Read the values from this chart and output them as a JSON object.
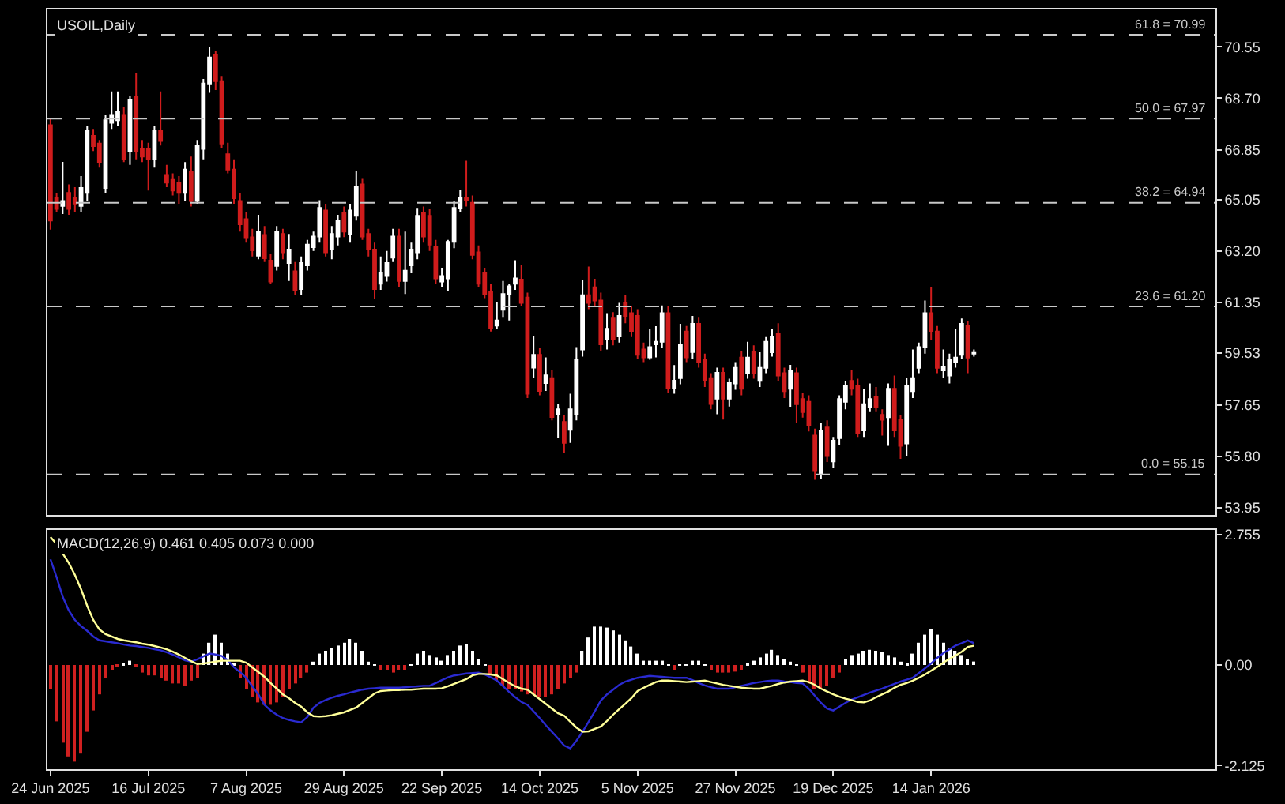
{
  "chart_data": [
    {
      "type": "candlestick",
      "title": "USOIL,Daily",
      "categories": [
        null,
        null,
        null,
        null,
        null,
        null,
        null,
        null,
        null,
        null,
        null,
        null,
        null,
        null,
        null,
        null,
        null,
        null,
        null,
        null,
        null,
        null,
        null,
        null,
        null,
        null,
        null,
        null,
        null,
        null,
        null,
        null,
        null,
        null,
        null,
        null,
        null,
        null,
        null,
        null,
        null,
        null,
        null,
        null,
        null,
        null,
        null,
        null,
        null,
        null,
        null,
        null,
        null,
        null,
        null,
        null,
        null,
        null,
        null,
        null,
        null,
        null,
        null,
        null,
        null,
        null,
        null,
        null,
        null,
        null,
        null,
        null,
        null,
        null,
        null,
        null,
        null,
        null,
        null,
        null,
        null,
        null,
        null,
        null,
        null,
        null,
        null,
        null,
        null,
        null,
        null,
        null,
        null,
        null,
        null,
        null,
        null,
        null,
        null,
        null,
        null,
        null,
        null,
        null,
        null,
        null,
        null,
        null,
        null,
        null,
        null,
        null,
        null,
        null,
        null,
        null,
        null,
        null,
        null,
        null,
        null,
        null,
        null,
        null,
        null,
        null,
        null,
        null,
        null,
        null,
        null,
        null,
        null,
        null,
        null,
        null,
        null,
        null,
        null,
        null,
        null,
        null,
        null,
        null,
        null,
        null,
        null,
        null,
        null,
        null,
        null,
        null,
        null,
        null,
        null,
        null,
        null,
        null,
        null,
        null,
        null,
        null,
        null,
        null,
        null,
        null,
        null,
        null,
        null,
        null,
        null,
        null,
        null,
        null,
        null,
        null,
        null,
        null,
        null,
        null,
        null,
        null,
        null,
        null,
        null,
        null,
        null,
        null,
        null,
        null,
        null
      ],
      "colors": [
        "#d01c1c",
        "#d01c1c",
        "#ffffff",
        "#d01c1c",
        "#d01c1c",
        "#ffffff",
        "#ffffff",
        "#d01c1c",
        "#d01c1c",
        "#ffffff",
        "#ffffff",
        "#ffffff",
        "#d01c1c",
        "#ffffff",
        "#d01c1c",
        "#d01c1c",
        "#d01c1c",
        "#ffffff",
        "#d01c1c",
        "#d01c1c",
        "#d01c1c",
        "#d01c1c",
        "#ffffff",
        "#d01c1c",
        "#ffffff",
        "#ffffff",
        "#ffffff",
        "#d01c1c",
        "#d01c1c",
        "#d01c1c",
        "#d01c1c",
        "#d01c1c",
        "#d01c1c",
        "#d01c1c",
        "#ffffff",
        "#d01c1c",
        "#d01c1c",
        "#ffffff",
        "#d01c1c",
        "#ffffff",
        "#d01c1c",
        "#ffffff",
        "#ffffff",
        "#ffffff",
        "#ffffff",
        "#d01c1c",
        "#ffffff",
        "#ffffff",
        "#d01c1c",
        "#ffffff",
        "#ffffff",
        "#d01c1c",
        "#d01c1c",
        "#d01c1c",
        "#ffffff",
        "#ffffff",
        "#ffffff",
        "#d01c1c",
        "#ffffff",
        "#ffffff",
        "#ffffff",
        "#d01c1c",
        "#d01c1c",
        "#d01c1c",
        "#ffffff",
        "#ffffff",
        "#ffffff",
        "#ffffff",
        "#d01c1c",
        "#d01c1c",
        "#d01c1c",
        "#d01c1c",
        "#d01c1c",
        "#ffffff",
        "#ffffff",
        "#ffffff",
        "#ffffff",
        "#d01c1c",
        "#d01c1c",
        "#ffffff",
        "#d01c1c",
        "#ffffff",
        "#d01c1c",
        "#ffffff",
        "#d01c1c",
        "#ffffff",
        "#ffffff",
        "#ffffff",
        "#d01c1c",
        "#d01c1c",
        "#d01c1c",
        "#ffffff",
        "#d01c1c",
        "#ffffff",
        "#d01c1c",
        "#d01c1c",
        "#d01c1c",
        "#d01c1c",
        "#ffffff",
        "#ffffff",
        "#ffffff",
        "#d01c1c",
        "#ffffff",
        "#ffffff",
        "#d01c1c",
        "#ffffff",
        "#d01c1c",
        "#d01c1c",
        "#d01c1c",
        "#ffffff",
        "#d01c1c",
        "#ffffff",
        "#ffffff",
        "#d01c1c",
        "#ffffff",
        "#d01c1c",
        "#ffffff",
        "#ffffff",
        "#ffffff",
        "#d01c1c",
        "#d01c1c",
        "#ffffff",
        "#d01c1c",
        "#d01c1c",
        "#d01c1c",
        "#d01c1c",
        "#ffffff",
        "#d01c1c",
        "#ffffff",
        "#ffffff",
        "#ffffff",
        "#d01c1c",
        "#d01c1c",
        "#ffffff",
        "#ffffff",
        "#d01c1c",
        "#d01c1c",
        "#ffffff",
        "#d01c1c",
        "#d01c1c",
        "#ffffff",
        "#ffffff",
        "#ffffff",
        "#ffffff",
        "#d01c1c",
        "#d01c1c",
        "#ffffff",
        "#ffffff",
        "#ffffff",
        "#ffffff",
        "#d01c1c",
        "#ffffff",
        null,
        null,
        null,
        null,
        null,
        null,
        null,
        null,
        null,
        null,
        null,
        null,
        null,
        null,
        null,
        null,
        null,
        null,
        null,
        null,
        null,
        null,
        null,
        null,
        null,
        null,
        null,
        null,
        null,
        null,
        null,
        null,
        null,
        null,
        null,
        null,
        null,
        null,
        null
      ],
      "ohlc": [
        [
          67.73,
          67.95,
          63.97,
          64.3
        ],
        [
          65.1,
          65.3,
          64.6,
          64.72
        ],
        [
          64.82,
          66.41,
          64.53,
          65.0
        ],
        [
          65.29,
          65.6,
          64.5,
          64.72
        ],
        [
          65.1,
          65.5,
          64.6,
          64.91
        ],
        [
          64.82,
          65.9,
          64.6,
          65.47
        ],
        [
          65.29,
          67.7,
          65.0,
          67.54
        ],
        [
          67.35,
          67.6,
          66.8,
          66.98
        ],
        [
          67.07,
          67.2,
          66.2,
          66.41
        ],
        [
          65.47,
          68.1,
          65.3,
          67.91
        ],
        [
          67.82,
          68.95,
          67.6,
          68.1
        ],
        [
          67.91,
          68.95,
          67.7,
          68.2
        ],
        [
          68.1,
          68.4,
          66.4,
          66.51
        ],
        [
          66.79,
          68.8,
          66.3,
          68.66
        ],
        [
          68.76,
          69.6,
          66.5,
          66.79
        ],
        [
          66.88,
          67.2,
          66.4,
          66.6
        ],
        [
          66.88,
          67.1,
          65.38,
          66.51
        ],
        [
          66.51,
          67.7,
          66.2,
          67.54
        ],
        [
          67.54,
          68.95,
          67.0,
          67.16
        ],
        [
          65.94,
          66.3,
          65.5,
          65.66
        ],
        [
          65.76,
          66.0,
          65.2,
          65.38
        ],
        [
          65.66,
          65.9,
          64.9,
          65.29
        ],
        [
          65.29,
          66.4,
          65.0,
          66.13
        ],
        [
          66.04,
          66.6,
          64.8,
          65.0
        ],
        [
          65.0,
          67.2,
          64.9,
          66.98
        ],
        [
          66.88,
          69.4,
          66.5,
          69.23
        ],
        [
          69.23,
          70.54,
          68.9,
          70.17
        ],
        [
          70.26,
          70.4,
          69.0,
          69.32
        ],
        [
          69.32,
          69.5,
          66.9,
          67.07
        ],
        [
          66.69,
          67.1,
          66.0,
          66.13
        ],
        [
          66.13,
          66.5,
          64.9,
          65.1
        ],
        [
          65.0,
          65.3,
          63.9,
          64.16
        ],
        [
          64.35,
          64.6,
          63.5,
          63.69
        ],
        [
          63.69,
          64.0,
          63.0,
          63.22
        ],
        [
          63.03,
          64.5,
          62.9,
          63.88
        ],
        [
          63.78,
          64.1,
          62.8,
          62.94
        ],
        [
          62.85,
          63.1,
          62.0,
          62.1
        ],
        [
          62.66,
          64.1,
          62.5,
          63.88
        ],
        [
          63.81,
          64.0,
          62.9,
          63.15
        ],
        [
          62.77,
          63.81,
          62.12,
          63.25
        ],
        [
          62.47,
          62.8,
          61.6,
          61.8
        ],
        [
          61.83,
          63.0,
          61.6,
          62.77
        ],
        [
          62.68,
          63.6,
          62.5,
          63.43
        ],
        [
          63.34,
          63.9,
          63.2,
          63.72
        ],
        [
          63.72,
          65.03,
          63.5,
          64.75
        ],
        [
          64.66,
          64.9,
          63.0,
          63.15
        ],
        [
          63.25,
          64.1,
          62.9,
          63.81
        ],
        [
          63.72,
          64.5,
          63.4,
          64.28
        ],
        [
          64.56,
          64.8,
          63.7,
          63.9
        ],
        [
          63.81,
          64.9,
          63.5,
          64.66
        ],
        [
          64.47,
          66.07,
          64.3,
          65.5
        ],
        [
          65.6,
          65.8,
          63.6,
          63.72
        ],
        [
          63.81,
          64.0,
          63.0,
          63.25
        ],
        [
          63.25,
          63.5,
          61.46,
          61.83
        ],
        [
          62.02,
          63.0,
          61.8,
          62.4
        ],
        [
          62.3,
          63.2,
          62.1,
          62.77
        ],
        [
          62.96,
          64.0,
          62.8,
          63.72
        ],
        [
          63.72,
          64.0,
          61.9,
          62.12
        ],
        [
          62.12,
          63.9,
          61.65,
          62.49
        ],
        [
          62.68,
          63.5,
          62.4,
          63.25
        ],
        [
          63.15,
          64.75,
          62.9,
          64.47
        ],
        [
          64.56,
          64.8,
          63.5,
          63.72
        ],
        [
          64.47,
          64.7,
          63.2,
          63.43
        ],
        [
          63.34,
          63.6,
          62.0,
          62.21
        ],
        [
          62.1,
          62.6,
          61.9,
          62.3
        ],
        [
          62.21,
          63.6,
          61.74,
          63.53
        ],
        [
          63.53,
          65.0,
          63.3,
          64.75
        ],
        [
          64.75,
          65.41,
          64.6,
          65.13
        ],
        [
          65.13,
          66.45,
          64.8,
          65.03
        ],
        [
          64.94,
          65.2,
          62.9,
          63.06
        ],
        [
          63.15,
          63.4,
          61.9,
          62.02
        ],
        [
          62.4,
          62.6,
          61.5,
          61.65
        ],
        [
          61.74,
          62.0,
          60.3,
          60.42
        ],
        [
          60.51,
          61.36,
          60.4,
          60.7
        ],
        [
          61.08,
          62.12,
          60.8,
          61.65
        ],
        [
          61.65,
          62.02,
          60.7,
          61.93
        ],
        [
          62.02,
          62.87,
          61.8,
          62.21
        ],
        [
          62.17,
          62.7,
          61.2,
          61.33
        ],
        [
          61.52,
          61.7,
          57.9,
          58.06
        ],
        [
          59.0,
          60.12,
          58.62,
          59.46
        ],
        [
          59.46,
          59.7,
          58.0,
          58.16
        ],
        [
          58.44,
          59.37,
          58.16,
          58.72
        ],
        [
          58.62,
          58.9,
          57.1,
          57.22
        ],
        [
          57.32,
          57.69,
          56.48,
          57.5
        ],
        [
          57.04,
          57.3,
          55.92,
          56.29
        ],
        [
          56.76,
          58.06,
          56.29,
          57.5
        ],
        [
          57.32,
          59.74,
          57.1,
          59.28
        ],
        [
          59.65,
          62.17,
          59.4,
          61.61
        ],
        [
          61.61,
          62.64,
          61.1,
          61.33
        ],
        [
          61.89,
          62.2,
          61.2,
          61.42
        ],
        [
          61.42,
          61.7,
          59.6,
          59.84
        ],
        [
          60.02,
          60.96,
          59.65,
          60.4
        ],
        [
          60.77,
          61.0,
          59.8,
          60.02
        ],
        [
          60.12,
          61.33,
          59.9,
          60.86
        ],
        [
          61.33,
          61.6,
          60.6,
          60.86
        ],
        [
          60.96,
          61.2,
          60.1,
          60.3
        ],
        [
          60.86,
          61.1,
          59.3,
          59.46
        ],
        [
          59.65,
          59.9,
          59.2,
          59.37
        ],
        [
          59.37,
          60.4,
          59.28,
          59.74
        ],
        [
          59.84,
          60.49,
          59.37,
          59.93
        ],
        [
          59.93,
          61.24,
          59.7,
          60.96
        ],
        [
          60.96,
          61.2,
          58.1,
          58.25
        ],
        [
          58.25,
          59.09,
          58.06,
          58.53
        ],
        [
          58.62,
          60.58,
          58.4,
          59.84
        ],
        [
          60.3,
          60.5,
          59.2,
          59.37
        ],
        [
          59.56,
          60.86,
          59.3,
          60.58
        ],
        [
          60.58,
          60.8,
          59.0,
          59.18
        ],
        [
          59.28,
          59.5,
          58.3,
          58.53
        ],
        [
          58.62,
          58.8,
          57.5,
          57.69
        ],
        [
          57.88,
          59.0,
          57.32,
          58.81
        ],
        [
          58.81,
          59.0,
          57.13,
          57.88
        ],
        [
          57.88,
          58.6,
          57.6,
          58.44
        ],
        [
          58.43,
          59.2,
          58.2,
          58.99
        ],
        [
          59.36,
          59.6,
          58.0,
          58.24
        ],
        [
          58.8,
          59.93,
          58.6,
          59.36
        ],
        [
          59.55,
          59.8,
          58.6,
          58.8
        ],
        [
          58.52,
          59.55,
          58.3,
          58.99
        ],
        [
          58.99,
          60.1,
          58.8,
          59.93
        ],
        [
          59.55,
          60.39,
          59.4,
          60.11
        ],
        [
          60.21,
          60.6,
          58.5,
          58.71
        ],
        [
          58.8,
          59.0,
          57.9,
          58.15
        ],
        [
          58.24,
          59.1,
          57.59,
          58.9
        ],
        [
          58.8,
          59.0,
          57.02,
          57.68
        ],
        [
          57.87,
          58.1,
          57.2,
          57.4
        ],
        [
          57.77,
          58.0,
          56.7,
          56.93
        ],
        [
          56.55,
          56.8,
          54.96,
          55.3
        ],
        [
          55.15,
          57.0,
          55.0,
          56.74
        ],
        [
          56.84,
          57.1,
          55.6,
          55.81
        ],
        [
          55.62,
          56.5,
          55.4,
          56.37
        ],
        [
          56.46,
          58.0,
          56.2,
          57.87
        ],
        [
          57.77,
          58.5,
          57.5,
          58.33
        ],
        [
          58.52,
          58.9,
          58.0,
          58.24
        ],
        [
          58.33,
          58.6,
          56.5,
          56.65
        ],
        [
          56.74,
          58.24,
          56.5,
          57.68
        ],
        [
          57.59,
          58.43,
          57.4,
          57.87
        ],
        [
          57.96,
          58.3,
          57.4,
          57.59
        ],
        [
          57.3,
          57.5,
          56.55,
          57.12
        ],
        [
          57.21,
          58.43,
          56.18,
          58.24
        ],
        [
          58.24,
          58.71,
          56.5,
          56.74
        ],
        [
          57.12,
          57.3,
          55.71,
          56.18
        ],
        [
          56.27,
          58.62,
          55.81,
          58.33
        ],
        [
          58.15,
          59.65,
          57.9,
          58.62
        ],
        [
          58.99,
          59.9,
          58.8,
          59.74
        ],
        [
          59.74,
          61.42,
          59.5,
          60.96
        ],
        [
          60.96,
          61.89,
          60.0,
          60.3
        ],
        [
          60.3,
          60.5,
          58.8,
          58.99
        ],
        [
          58.9,
          59.65,
          58.62,
          59.03
        ],
        [
          58.71,
          59.5,
          58.43,
          59.27
        ],
        [
          59.18,
          60.39,
          59.0,
          59.36
        ],
        [
          59.46,
          60.77,
          59.3,
          60.58
        ],
        [
          60.49,
          60.68,
          58.8,
          59.36
        ],
        [
          59.5,
          59.65,
          59.4,
          59.53
        ],
        null,
        null,
        null,
        null,
        null,
        null,
        null,
        null,
        null,
        null,
        null,
        null,
        null,
        null,
        null,
        null,
        null,
        null,
        null,
        null,
        null,
        null,
        null,
        null,
        null,
        null,
        null,
        null,
        null,
        null,
        null,
        null,
        null,
        null,
        null,
        null,
        null,
        null,
        null
      ],
      "ylim": [
        53.7,
        71.9
      ],
      "yticks": [
        70.55,
        {
          "value": 68.7,
          "label": "68.70"
        },
        66.85,
        65.05,
        {
          "value": 63.2,
          "label": "63.20"
        },
        61.35,
        59.53,
        57.65,
        {
          "value": 55.8,
          "label": "55.80"
        },
        53.95
      ],
      "ref_lines": [
        {
          "axis": "y",
          "value": 70.99,
          "label": "61.8 = 70.99",
          "color": "#c8c8c8",
          "line_style": "dashed"
        },
        {
          "axis": "y",
          "value": 67.97,
          "label": "50.0 = 67.97",
          "color": "#c8c8c8",
          "line_style": "dashed"
        },
        {
          "axis": "y",
          "value": 64.94,
          "label": "38.2 = 64.94",
          "color": "#c8c8c8",
          "line_style": "dashed"
        },
        {
          "axis": "y",
          "value": 61.2,
          "label": "23.6 = 61.20",
          "color": "#c8c8c8",
          "line_style": "dashed"
        },
        {
          "axis": "y",
          "value": 55.15,
          "label": "0.0 = 55.15",
          "color": "#c8c8c8",
          "line_style": "dashed"
        }
      ],
      "tick_labels": "y"
    },
    {
      "type": "bar",
      "title": "MACD(12,26,9) 0.461 0.405 0.073 0.000",
      "categories": [
        "24 Jun 2025",
        null,
        null,
        null,
        null,
        null,
        null,
        null,
        null,
        null,
        null,
        null,
        null,
        null,
        null,
        null,
        "16 Jul 2025",
        null,
        null,
        null,
        null,
        null,
        null,
        null,
        null,
        null,
        null,
        null,
        null,
        null,
        null,
        null,
        "7 Aug 2025",
        null,
        null,
        null,
        null,
        null,
        null,
        null,
        null,
        null,
        null,
        null,
        null,
        null,
        null,
        null,
        "29 Aug 2025",
        null,
        null,
        null,
        null,
        null,
        null,
        null,
        null,
        null,
        null,
        null,
        null,
        null,
        null,
        null,
        "22 Sep 2025",
        null,
        null,
        null,
        null,
        null,
        null,
        null,
        null,
        null,
        null,
        null,
        null,
        null,
        null,
        null,
        "14 Oct 2025",
        null,
        null,
        null,
        null,
        null,
        null,
        null,
        null,
        null,
        null,
        null,
        null,
        null,
        null,
        null,
        "5 Nov 2025",
        null,
        null,
        null,
        null,
        null,
        null,
        null,
        null,
        null,
        null,
        null,
        null,
        null,
        null,
        null,
        "27 Nov 2025",
        null,
        null,
        null,
        null,
        null,
        null,
        null,
        null,
        null,
        null,
        null,
        null,
        null,
        null,
        null,
        "19 Dec 2025",
        null,
        null,
        null,
        null,
        null,
        null,
        null,
        null,
        null,
        null,
        null,
        null,
        null,
        null,
        null,
        "14 Jan 2026",
        null,
        null,
        null,
        null,
        null,
        null,
        null,
        null,
        null,
        null,
        null,
        null,
        null,
        null,
        null,
        null,
        null,
        null,
        null,
        null,
        null,
        null,
        null,
        null,
        null,
        null,
        null,
        null,
        null,
        null,
        null,
        null,
        null,
        null,
        null,
        null,
        null,
        null,
        null,
        null,
        null,
        null,
        null,
        null,
        null,
        null
      ],
      "series": [
        {
          "type": "bar",
          "values": [
            -0.5,
            -1.19,
            -1.64,
            -1.93,
            -2.04,
            -1.87,
            -1.41,
            -0.96,
            -0.62,
            -0.27,
            -0.1,
            -0.02,
            0.02,
            0.09,
            -0.02,
            -0.16,
            -0.22,
            -0.22,
            -0.27,
            -0.33,
            -0.39,
            -0.39,
            -0.44,
            -0.33,
            -0.27,
            0.24,
            0.47,
            0.64,
            0.47,
            0.24,
            0.02,
            -0.27,
            -0.5,
            -0.67,
            -0.79,
            -0.84,
            -0.84,
            -0.79,
            -0.67,
            -0.5,
            -0.39,
            -0.27,
            -0.16,
            0.07,
            0.24,
            0.3,
            0.35,
            0.41,
            0.47,
            0.55,
            0.47,
            0.3,
            0.07,
            0.01,
            -0.1,
            -0.1,
            -0.16,
            -0.1,
            -0.1,
            0.01,
            0.24,
            0.3,
            0.21,
            0.16,
            0.09,
            0.21,
            0.3,
            0.41,
            0.44,
            0.3,
            0.13,
            0.01,
            -0.22,
            -0.33,
            -0.44,
            -0.5,
            -0.5,
            -0.56,
            -0.62,
            -0.64,
            -0.67,
            -0.67,
            -0.62,
            -0.5,
            -0.39,
            -0.27,
            -0.16,
            0.3,
            0.58,
            0.81,
            0.81,
            0.79,
            0.73,
            0.64,
            0.52,
            0.39,
            0.24,
            0.09,
            0.09,
            0.09,
            0.09,
            0.01,
            -0.1,
            0.01,
            0.01,
            0.09,
            0.09,
            0.01,
            -0.1,
            -0.16,
            -0.16,
            -0.16,
            -0.14,
            -0.1,
            0.05,
            0.09,
            0.16,
            0.24,
            0.32,
            0.21,
            0.13,
            0.07,
            0.01,
            -0.16,
            -0.39,
            -0.5,
            -0.5,
            -0.44,
            -0.27,
            -0.16,
            0.13,
            0.21,
            0.24,
            0.3,
            0.32,
            0.3,
            0.27,
            0.21,
            0.16,
            0.07,
            0.05,
            0.24,
            0.47,
            0.64,
            0.75,
            0.64,
            0.47,
            0.35,
            0.3,
            0.21,
            0.13,
            0.073,
            null,
            null,
            null,
            null,
            null,
            null,
            null,
            null,
            null,
            null,
            null,
            null,
            null,
            null,
            null,
            null,
            null,
            null,
            null,
            null,
            null,
            null,
            null,
            null,
            null,
            null,
            null,
            null,
            null,
            null,
            null,
            null,
            null,
            null,
            null,
            null,
            null,
            null,
            null
          ],
          "colors": [
            "#d02020",
            "#d02020",
            "#d02020",
            "#d02020",
            "#d02020",
            "#d02020",
            "#d02020",
            "#d02020",
            "#d02020",
            "#d02020",
            "#d02020",
            "#d02020",
            "#ffffff",
            "#ffffff",
            "#d02020",
            "#d02020",
            "#d02020",
            "#d02020",
            "#d02020",
            "#d02020",
            "#d02020",
            "#d02020",
            "#d02020",
            "#d02020",
            "#d02020",
            "#ffffff",
            "#ffffff",
            "#ffffff",
            "#ffffff",
            "#ffffff",
            "#ffffff",
            "#d02020",
            "#d02020",
            "#d02020",
            "#d02020",
            "#d02020",
            "#d02020",
            "#d02020",
            "#d02020",
            "#d02020",
            "#d02020",
            "#d02020",
            "#d02020",
            "#ffffff",
            "#ffffff",
            "#ffffff",
            "#ffffff",
            "#ffffff",
            "#ffffff",
            "#ffffff",
            "#ffffff",
            "#ffffff",
            "#ffffff",
            "#ffffff",
            "#d02020",
            "#d02020",
            "#d02020",
            "#d02020",
            "#d02020",
            "#ffffff",
            "#ffffff",
            "#ffffff",
            "#ffffff",
            "#ffffff",
            "#ffffff",
            "#ffffff",
            "#ffffff",
            "#ffffff",
            "#ffffff",
            "#ffffff",
            "#ffffff",
            "#ffffff",
            "#d02020",
            "#d02020",
            "#d02020",
            "#d02020",
            "#d02020",
            "#d02020",
            "#d02020",
            "#d02020",
            "#d02020",
            "#d02020",
            "#d02020",
            "#d02020",
            "#d02020",
            "#d02020",
            "#d02020",
            "#ffffff",
            "#ffffff",
            "#ffffff",
            "#ffffff",
            "#ffffff",
            "#ffffff",
            "#ffffff",
            "#ffffff",
            "#ffffff",
            "#ffffff",
            "#ffffff",
            "#ffffff",
            "#ffffff",
            "#ffffff",
            "#ffffff",
            "#d02020",
            "#ffffff",
            "#ffffff",
            "#ffffff",
            "#ffffff",
            "#ffffff",
            "#d02020",
            "#d02020",
            "#d02020",
            "#d02020",
            "#d02020",
            "#d02020",
            "#ffffff",
            "#ffffff",
            "#ffffff",
            "#ffffff",
            "#ffffff",
            "#ffffff",
            "#ffffff",
            "#ffffff",
            "#ffffff",
            "#d02020",
            "#d02020",
            "#d02020",
            "#d02020",
            "#d02020",
            "#d02020",
            "#d02020",
            "#ffffff",
            "#ffffff",
            "#ffffff",
            "#ffffff",
            "#ffffff",
            "#ffffff",
            "#ffffff",
            "#ffffff",
            "#ffffff",
            "#ffffff",
            "#ffffff",
            "#ffffff",
            "#ffffff",
            "#ffffff",
            "#ffffff",
            "#ffffff",
            "#ffffff",
            "#ffffff",
            "#ffffff",
            "#ffffff",
            "#ffffff",
            "#ffffff",
            null,
            null,
            null,
            null,
            null,
            null,
            null,
            null,
            null,
            null,
            null,
            null,
            null,
            null,
            null,
            null,
            null,
            null,
            null,
            null,
            null,
            null,
            null,
            null,
            null,
            null,
            null,
            null,
            null,
            null,
            null,
            null,
            null,
            null,
            null,
            null,
            null,
            null,
            null
          ]
        },
        {
          "type": "line",
          "color": "#2a2ad0",
          "values": [
            2.23,
            1.85,
            1.44,
            1.15,
            0.95,
            0.82,
            0.72,
            0.6,
            0.52,
            0.5,
            0.48,
            0.46,
            0.43,
            0.41,
            0.4,
            0.38,
            0.36,
            0.33,
            0.31,
            0.27,
            0.22,
            0.16,
            0.1,
            0.07,
            0.12,
            0.18,
            0.24,
            0.22,
            0.19,
            0.1,
            -0.05,
            -0.15,
            -0.27,
            -0.45,
            -0.62,
            -0.84,
            -0.96,
            -1.05,
            -1.12,
            -1.16,
            -1.19,
            -1.21,
            -1.1,
            -0.9,
            -0.8,
            -0.74,
            -0.69,
            -0.65,
            -0.62,
            -0.58,
            -0.55,
            -0.52,
            -0.5,
            -0.49,
            -0.48,
            -0.48,
            -0.48,
            -0.48,
            -0.47,
            -0.46,
            -0.45,
            -0.44,
            -0.44,
            -0.38,
            -0.32,
            -0.26,
            -0.22,
            -0.2,
            -0.18,
            -0.17,
            -0.16,
            -0.2,
            -0.26,
            -0.33,
            -0.45,
            -0.57,
            -0.68,
            -0.78,
            -0.84,
            -0.98,
            -1.12,
            -1.27,
            -1.41,
            -1.55,
            -1.7,
            -1.76,
            -1.6,
            -1.41,
            -1.2,
            -0.98,
            -0.75,
            -0.62,
            -0.52,
            -0.42,
            -0.35,
            -0.31,
            -0.27,
            -0.25,
            -0.23,
            -0.24,
            -0.25,
            -0.26,
            -0.27,
            -0.27,
            -0.27,
            -0.32,
            -0.38,
            -0.43,
            -0.47,
            -0.5,
            -0.5,
            -0.5,
            -0.47,
            -0.44,
            -0.41,
            -0.38,
            -0.36,
            -0.34,
            -0.33,
            -0.33,
            -0.35,
            -0.36,
            -0.38,
            -0.39,
            -0.5,
            -0.65,
            -0.8,
            -0.92,
            -0.96,
            -0.88,
            -0.8,
            -0.73,
            -0.68,
            -0.63,
            -0.58,
            -0.54,
            -0.5,
            -0.45,
            -0.4,
            -0.35,
            -0.31,
            -0.27,
            -0.17,
            -0.07,
            0.03,
            0.15,
            0.25,
            0.33,
            0.41,
            0.46,
            0.52,
            0.461,
            null,
            null,
            null,
            null,
            null,
            null,
            null,
            null,
            null,
            null,
            null,
            null,
            null,
            null,
            null,
            null,
            null,
            null,
            null,
            null,
            null,
            null,
            null,
            null,
            null,
            null,
            null,
            null,
            null,
            null,
            null,
            null,
            null,
            null,
            null,
            null,
            null,
            null,
            null
          ]
        },
        {
          "type": "line",
          "color": "#ffff99",
          "values": [
            2.7,
            2.55,
            2.35,
            2.15,
            1.9,
            1.6,
            1.25,
            0.95,
            0.75,
            0.65,
            0.6,
            0.55,
            0.52,
            0.5,
            0.48,
            0.45,
            0.43,
            0.4,
            0.37,
            0.33,
            0.28,
            0.22,
            0.15,
            0.08,
            0.02,
            0.03,
            0.05,
            0.07,
            0.09,
            0.09,
            0.09,
            0.09,
            0.05,
            -0.05,
            -0.15,
            -0.25,
            -0.38,
            -0.5,
            -0.62,
            -0.7,
            -0.8,
            -0.88,
            -1.0,
            -1.08,
            -1.09,
            -1.08,
            -1.06,
            -1.03,
            -1.0,
            -0.95,
            -0.9,
            -0.8,
            -0.7,
            -0.6,
            -0.55,
            -0.54,
            -0.53,
            -0.53,
            -0.52,
            -0.52,
            -0.51,
            -0.5,
            -0.5,
            -0.5,
            -0.49,
            -0.45,
            -0.4,
            -0.35,
            -0.3,
            -0.22,
            -0.19,
            -0.19,
            -0.2,
            -0.22,
            -0.3,
            -0.38,
            -0.45,
            -0.5,
            -0.52,
            -0.62,
            -0.72,
            -0.82,
            -0.92,
            -1.02,
            -1.07,
            -1.2,
            -1.32,
            -1.41,
            -1.4,
            -1.35,
            -1.3,
            -1.18,
            -1.05,
            -0.93,
            -0.82,
            -0.7,
            -0.55,
            -0.48,
            -0.42,
            -0.36,
            -0.33,
            -0.33,
            -0.34,
            -0.35,
            -0.36,
            -0.35,
            -0.34,
            -0.33,
            -0.36,
            -0.39,
            -0.42,
            -0.44,
            -0.46,
            -0.48,
            -0.49,
            -0.5,
            -0.5,
            -0.47,
            -0.44,
            -0.4,
            -0.37,
            -0.35,
            -0.34,
            -0.33,
            -0.36,
            -0.42,
            -0.5,
            -0.56,
            -0.62,
            -0.67,
            -0.71,
            -0.74,
            -0.78,
            -0.79,
            -0.75,
            -0.68,
            -0.62,
            -0.56,
            -0.48,
            -0.42,
            -0.38,
            -0.33,
            -0.27,
            -0.2,
            -0.12,
            -0.04,
            0.05,
            0.13,
            0.2,
            0.28,
            0.38,
            0.405,
            null,
            null,
            null,
            null,
            null,
            null,
            null,
            null,
            null,
            null,
            null,
            null,
            null,
            null,
            null,
            null,
            null,
            null,
            null,
            null,
            null,
            null,
            null,
            null,
            null,
            null,
            null,
            null,
            null,
            null,
            null,
            null,
            null,
            null,
            null,
            null,
            null,
            null,
            null
          ]
        }
      ],
      "ylim": [
        -2.2,
        2.85
      ],
      "yticks": [
        2.755,
        {
          "value": 0,
          "label": "0.00"
        },
        -2.125
      ]
    }
  ]
}
